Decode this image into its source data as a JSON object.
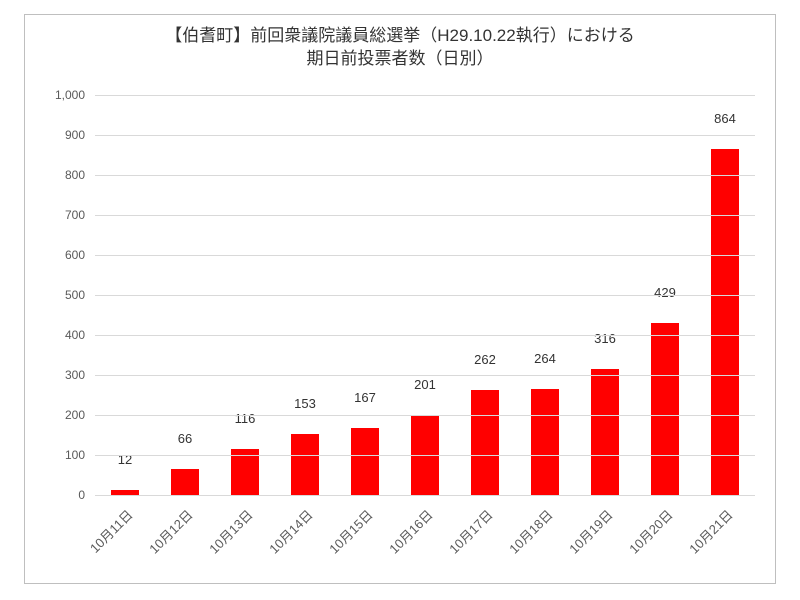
{
  "chart": {
    "type": "bar",
    "title_line1": "【伯耆町】前回衆議院議員総選挙（H29.10.22執行）における",
    "title_line2": "期日前投票者数（日別）",
    "title_fontsize": 17,
    "title_color": "#333333",
    "categories": [
      "10月11日",
      "10月12日",
      "10月13日",
      "10月14日",
      "10月15日",
      "10月16日",
      "10月17日",
      "10月18日",
      "10月19日",
      "10月20日",
      "10月21日"
    ],
    "values": [
      12,
      66,
      116,
      153,
      167,
      201,
      262,
      264,
      316,
      429,
      864
    ],
    "bar_color": "#ff0000",
    "label_color": "#333333",
    "label_fontsize": 13,
    "axis_tick_color": "#595959",
    "axis_tick_fontsize": 12,
    "ylim": [
      0,
      1000
    ],
    "ytick_step": 100,
    "grid_color": "#d9d9d9",
    "background_color": "#ffffff",
    "border_color": "#bfbfbf",
    "bar_width_ratio": 0.48,
    "x_label_rotation": -45
  }
}
